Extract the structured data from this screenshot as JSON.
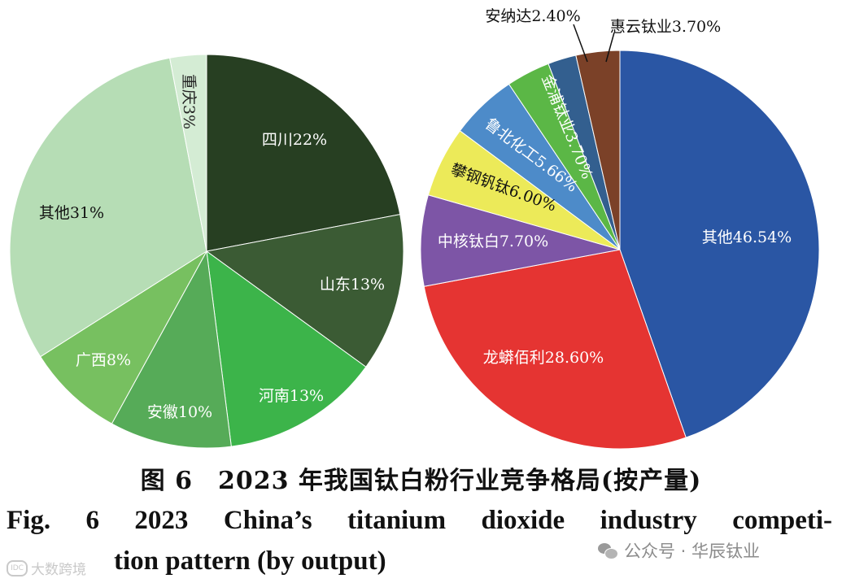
{
  "chart_data": [
    {
      "type": "pie",
      "title": "",
      "slices": [
        {
          "name": "四川",
          "value": 22,
          "label": "四川22%",
          "color": "#273f22"
        },
        {
          "name": "山东",
          "value": 13,
          "label": "山东13%",
          "color": "#3b5b34"
        },
        {
          "name": "河南",
          "value": 13,
          "label": "河南13%",
          "color": "#3cb44a"
        },
        {
          "name": "安徽",
          "value": 10,
          "label": "安徽10%",
          "color": "#56ab58"
        },
        {
          "name": "广西",
          "value": 8,
          "label": "广西8%",
          "color": "#77c060"
        },
        {
          "name": "其他",
          "value": 31,
          "label": "其他31%",
          "color": "#b6ddb5"
        },
        {
          "name": "重庆",
          "value": 3,
          "label": "重庆3%",
          "color": "#d4ecd4"
        }
      ]
    },
    {
      "type": "pie",
      "title": "",
      "slices": [
        {
          "name": "其他",
          "value": 46.54,
          "label": "其他46.54%",
          "color": "#2a56a4"
        },
        {
          "name": "龙蟒佰利",
          "value": 28.6,
          "label": "龙蟒佰利28.60%",
          "color": "#e53432"
        },
        {
          "name": "中核钛白",
          "value": 7.7,
          "label": "中核钛白7.70%",
          "color": "#7d55a6"
        },
        {
          "name": "攀钢钒钛",
          "value": 6.0,
          "label": "攀钢钒钛6.00%",
          "color": "#ecea59"
        },
        {
          "name": "鲁北化工",
          "value": 5.66,
          "label": "鲁北化工5.66%",
          "color": "#4d8bc9"
        },
        {
          "name": "金浦钛业",
          "value": 3.7,
          "label": "金浦钛业3.70%",
          "color": "#5bb746"
        },
        {
          "name": "安纳达",
          "value": 2.4,
          "label": "安纳达2.40%",
          "color": "#335f8f"
        },
        {
          "name": "惠云钛业",
          "value": 3.7,
          "label": "惠云钛业3.70%",
          "color": "#7b4128"
        }
      ]
    }
  ],
  "caption": {
    "zh": "图 6　2023 年我国钛白粉行业竞争格局(按产量)",
    "en_line1": "Fig. 6   2023 China’s titanium dioxide industry competi-",
    "en_line2": "tion pattern (by output)"
  },
  "watermark": {
    "left_logo": "IDC",
    "left": "大数跨境",
    "right": "公众号 · 华辰钛业"
  }
}
